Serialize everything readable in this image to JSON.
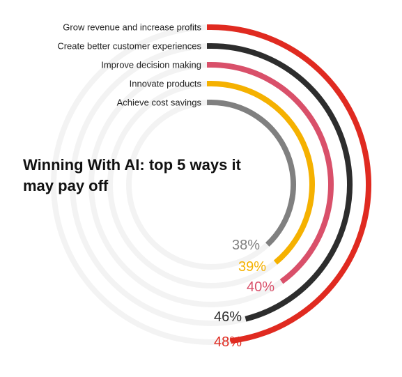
{
  "chart_data": {
    "type": "radial-bar",
    "title": "Winning With AI: top 5 ways it may pay off",
    "unit": "%",
    "categories": [
      "Grow revenue and increase profits",
      "Create better customer experiences",
      "Improve decision making",
      "Innovate products",
      "Achieve cost savings"
    ],
    "values": [
      48,
      46,
      40,
      39,
      38
    ],
    "value_labels": [
      "48%",
      "46%",
      "40%",
      "39%",
      "38%"
    ],
    "colors": [
      "#e02a20",
      "#2d2d2d",
      "#d9506a",
      "#f5b100",
      "#808080"
    ],
    "track_color": "#f3f3f3"
  }
}
